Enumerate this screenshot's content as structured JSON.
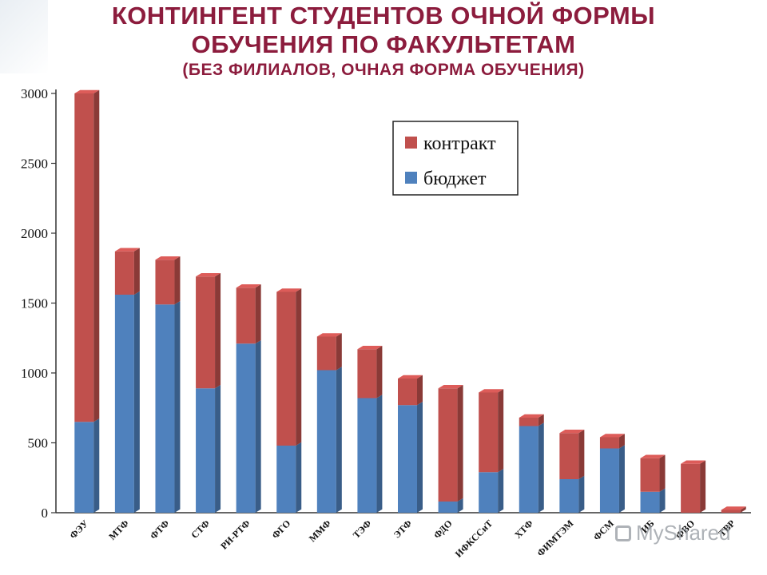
{
  "header": {
    "title_line1": "КОНТИНГЕНТ СТУДЕНТОВ ОЧНОЙ ФОРМЫ",
    "title_line2": "ОБУЧЕНИЯ ПО ФАКУЛЬТЕТАМ",
    "subtitle": "(БЕЗ ФИЛИАЛОВ, ОЧНАЯ ФОРМА ОБУЧЕНИЯ)"
  },
  "watermark": {
    "text": "MyShared"
  },
  "chart_data": {
    "type": "bar",
    "stacked": true,
    "categories": [
      "ФЭУ",
      "МТФ",
      "ФТФ",
      "СТФ",
      "РИ-РТФ",
      "ФГО",
      "ММФ",
      "ТЭФ",
      "ЭТФ",
      "ФДО",
      "ИФКССиТ",
      "ХТФ",
      "ФИМТЭМ",
      "ФСМ",
      "ИБ",
      "ФВО",
      "ТВР"
    ],
    "series": [
      {
        "name": "бюджет",
        "color": "#4f81bd",
        "values": [
          650,
          1560,
          1490,
          890,
          1210,
          480,
          1020,
          820,
          770,
          80,
          290,
          620,
          240,
          460,
          150,
          0,
          0
        ]
      },
      {
        "name": "контракт",
        "color": "#c0504d",
        "values": [
          2350,
          310,
          320,
          800,
          400,
          1100,
          240,
          350,
          190,
          810,
          570,
          60,
          330,
          80,
          240,
          350,
          20
        ]
      }
    ],
    "ylim": [
      0,
      3000
    ],
    "yticks": [
      0,
      500,
      1000,
      1500,
      2000,
      2500,
      3000
    ],
    "legend_position": "top-right",
    "grid": false
  }
}
